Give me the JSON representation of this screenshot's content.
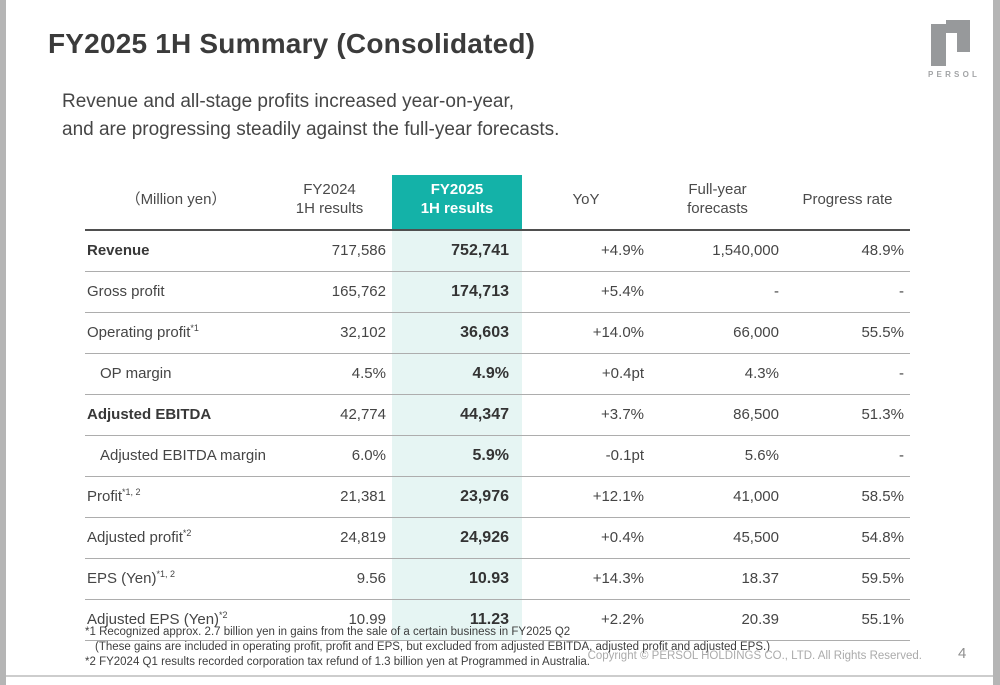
{
  "slide": {
    "title": "FY2025 1H Summary (Consolidated)",
    "subtitle_lines": [
      "Revenue and all-stage profits increased year-on-year,",
      "and are progressing steadily against the full-year forecasts."
    ],
    "page_number": "4",
    "copyright": "Copyright © PERSOL HOLDINGS CO., LTD. All Rights Reserved."
  },
  "logo": {
    "text": "PERSOL",
    "color": "#97999b"
  },
  "colors": {
    "accent_teal": "#14b2a8",
    "accent_teal_light": "#e6f5f3"
  },
  "table": {
    "columns": [
      "（Million yen）",
      "FY2024\n1H results",
      "FY2025\n1H results",
      "YoY",
      "Full-year\nforecasts",
      "Progress rate"
    ],
    "rows": [
      {
        "label": "Revenue",
        "sup": "",
        "bold": true,
        "indent": false,
        "fy2024": "717,586",
        "fy2025": "752,741",
        "yoy": "+4.9%",
        "forecast": "1,540,000",
        "progress": "48.9%"
      },
      {
        "label": "Gross profit",
        "sup": "",
        "bold": false,
        "indent": false,
        "fy2024": "165,762",
        "fy2025": "174,713",
        "yoy": "+5.4%",
        "forecast": "-",
        "progress": "-"
      },
      {
        "label": "Operating profit",
        "sup": "*1",
        "bold": false,
        "indent": false,
        "fy2024": "32,102",
        "fy2025": "36,603",
        "yoy": "+14.0%",
        "forecast": "66,000",
        "progress": "55.5%"
      },
      {
        "label": "OP margin",
        "sup": "",
        "bold": false,
        "indent": true,
        "fy2024": "4.5%",
        "fy2025": "4.9%",
        "yoy": "+0.4pt",
        "forecast": "4.3%",
        "progress": "-"
      },
      {
        "label": "Adjusted EBITDA",
        "sup": "",
        "bold": true,
        "indent": false,
        "fy2024": "42,774",
        "fy2025": "44,347",
        "yoy": "+3.7%",
        "forecast": "86,500",
        "progress": "51.3%"
      },
      {
        "label": "Adjusted EBITDA margin",
        "sup": "",
        "bold": false,
        "indent": true,
        "fy2024": "6.0%",
        "fy2025": "5.9%",
        "yoy": "-0.1pt",
        "forecast": "5.6%",
        "progress": "-"
      },
      {
        "label": "Profit",
        "sup": "*1, 2",
        "bold": false,
        "indent": false,
        "fy2024": "21,381",
        "fy2025": "23,976",
        "yoy": "+12.1%",
        "forecast": "41,000",
        "progress": "58.5%"
      },
      {
        "label": "Adjusted profit",
        "sup": "*2",
        "bold": false,
        "indent": false,
        "fy2024": "24,819",
        "fy2025": "24,926",
        "yoy": "+0.4%",
        "forecast": "45,500",
        "progress": "54.8%"
      },
      {
        "label": "EPS (Yen)",
        "sup": "*1, 2",
        "bold": false,
        "indent": false,
        "fy2024": "9.56",
        "fy2025": "10.93",
        "yoy": "+14.3%",
        "forecast": "18.37",
        "progress": "59.5%"
      },
      {
        "label": "Adjusted EPS (Yen)",
        "sup": "*2",
        "bold": false,
        "indent": false,
        "fy2024": "10.99",
        "fy2025": "11.23",
        "yoy": "+2.2%",
        "forecast": "20.39",
        "progress": "55.1%"
      }
    ]
  },
  "footnotes": [
    "*1 Recognized approx. 2.7 billion yen in gains from the sale of a certain business in FY2025 Q2",
    "(These gains are included in operating profit, profit and EPS, but excluded from adjusted EBITDA, adjusted profit and adjusted EPS.)",
    "*2 FY2024 Q1 results recorded corporation tax refund of 1.3 billion yen at Programmed in Australia."
  ]
}
